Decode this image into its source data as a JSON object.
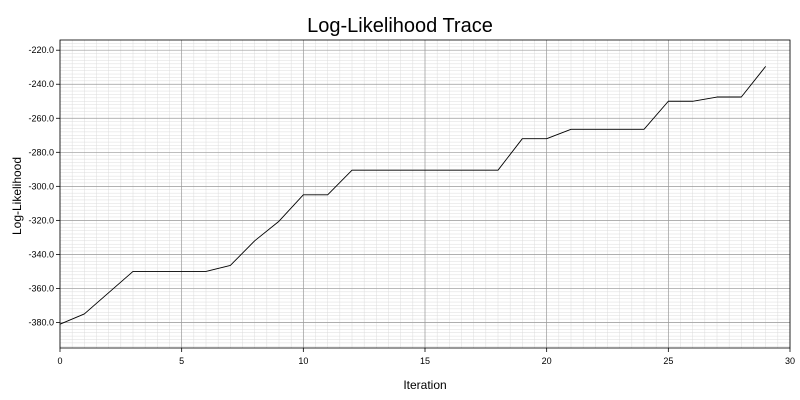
{
  "chart_data": {
    "type": "line",
    "title": "Log-Likelihood Trace",
    "xlabel": "Iteration",
    "ylabel": "Log-Likelihood",
    "xlim": [
      0,
      30
    ],
    "ylim": [
      -395,
      -214
    ],
    "x_ticks": [
      0,
      5,
      10,
      15,
      20,
      25,
      30
    ],
    "x_tick_labels": [
      "0",
      "5",
      "10",
      "15",
      "20",
      "25",
      "30"
    ],
    "y_ticks": [
      -380,
      -360,
      -340,
      -320,
      -300,
      -280,
      -260,
      -240,
      -220
    ],
    "y_tick_labels": [
      "-380.0",
      "-360.0",
      "-340.0",
      "-320.0",
      "-300.0",
      "-280.0",
      "-260.0",
      "-240.0",
      "-220.0"
    ],
    "grid": true,
    "legend": false,
    "series": [
      {
        "color": "#000000",
        "x": [
          0,
          1,
          2,
          3,
          4,
          5,
          6,
          7,
          8,
          9,
          10,
          11,
          12,
          13,
          14,
          15,
          16,
          17,
          18,
          19,
          20,
          21,
          22,
          23,
          24,
          25,
          26,
          27,
          28,
          29
        ],
        "y": [
          -381,
          -375,
          -362.5,
          -350,
          -350,
          -350,
          -350,
          -346.5,
          -332,
          -320.5,
          -305,
          -305,
          -290.5,
          -290.5,
          -290.5,
          -290.5,
          -290.5,
          -290.5,
          -290.5,
          -272,
          -272,
          -266.5,
          -266.5,
          -266.5,
          -266.5,
          -250,
          -250,
          -247.5,
          -247.5,
          -229.5
        ]
      }
    ]
  }
}
